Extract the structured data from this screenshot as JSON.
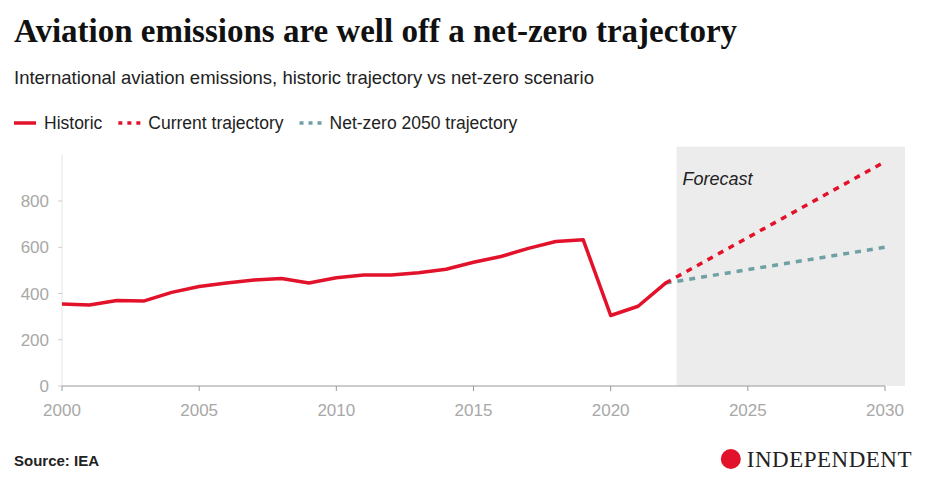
{
  "chart_data": {
    "type": "line",
    "title": "Aviation emissions are well off a net-zero trajectory",
    "subtitle": "International aviation emissions, historic trajectory vs net-zero scenario",
    "source": "Source: IEA",
    "logo": "INDEPENDENT",
    "xlim": [
      2000,
      2030
    ],
    "xticks": [
      2000,
      2005,
      2010,
      2015,
      2020,
      2025,
      2030
    ],
    "ylim": [
      0,
      1000
    ],
    "yticks": [
      0,
      200,
      400,
      600,
      800
    ],
    "grid": false,
    "legend": "top-left",
    "annotations": [
      {
        "text": "Forecast",
        "x": 2022.4
      }
    ],
    "series": [
      {
        "name": "Historic",
        "color": "#e3122b",
        "line_style": "solid",
        "x": [
          2000,
          2001,
          2002,
          2003,
          2004,
          2005,
          2006,
          2007,
          2008,
          2009,
          2010,
          2011,
          2012,
          2013,
          2014,
          2015,
          2016,
          2017,
          2018,
          2019,
          2020,
          2021,
          2022
        ],
        "values": [
          355,
          350,
          370,
          368,
          405,
          430,
          445,
          458,
          465,
          445,
          468,
          480,
          480,
          490,
          505,
          535,
          560,
          595,
          625,
          632,
          305,
          345,
          445
        ]
      },
      {
        "name": "Current trajectory",
        "color": "#e3122b",
        "line_style": "dashed",
        "x": [
          2022,
          2030
        ],
        "values": [
          445,
          970
        ]
      },
      {
        "name": "Net-zero 2050 trajectory",
        "color": "#6fa0a4",
        "line_style": "dashed",
        "x": [
          2022,
          2030
        ],
        "values": [
          445,
          600
        ]
      }
    ]
  }
}
